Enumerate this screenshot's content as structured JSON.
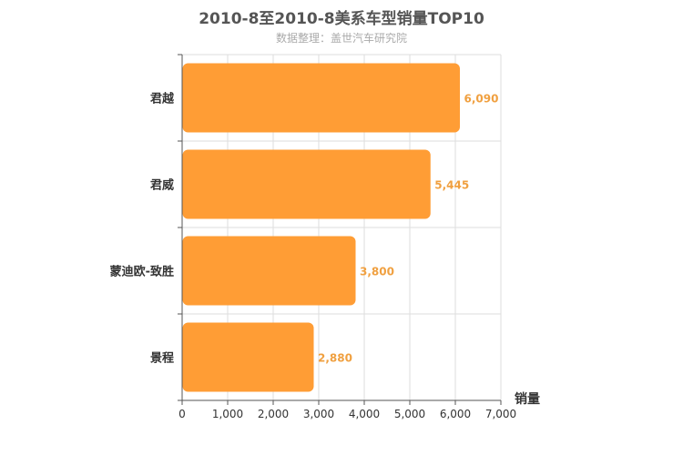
{
  "chart_data": {
    "type": "bar",
    "orientation": "horizontal",
    "title": "2010-8至2010-8美系车型销量TOP10",
    "subtitle": "数据整理：盖世汽车研究院",
    "categories": [
      "君越",
      "君威",
      "蒙迪欧-致胜",
      "景程"
    ],
    "values": [
      6090,
      5445,
      3800,
      2880
    ],
    "value_labels": [
      "6,090",
      "5,445",
      "3,800",
      "2,880"
    ],
    "xlabel": "销量",
    "ylabel": "",
    "xlim": [
      0,
      7000
    ],
    "ticks": [
      0,
      1000,
      2000,
      3000,
      4000,
      5000,
      6000,
      7000
    ],
    "tick_labels": [
      "0",
      "1,000",
      "2,000",
      "3,000",
      "4,000",
      "5,000",
      "6,000",
      "7,000"
    ],
    "grid": true,
    "bar_color": "#ff9d35",
    "label_color": "#f0a040",
    "grid_color": "#dddddd"
  }
}
